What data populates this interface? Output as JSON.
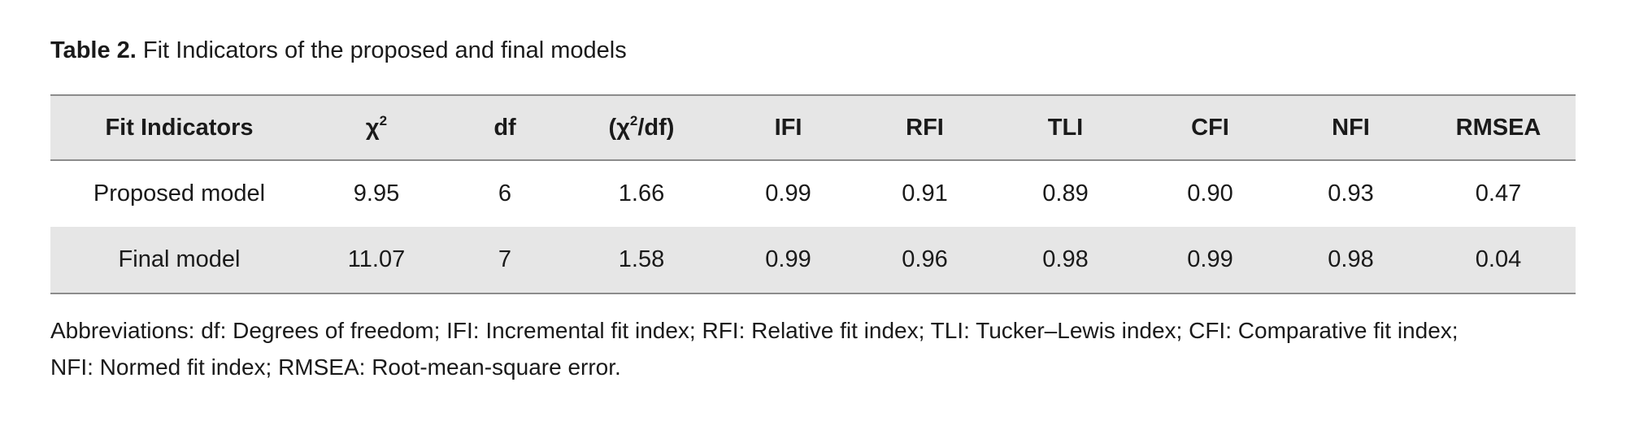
{
  "caption": {
    "label": "Table 2.",
    "text": " Fit Indicators of the proposed and final models"
  },
  "table": {
    "headers": [
      {
        "text": "Fit Indicators",
        "sup": ""
      },
      {
        "text": "χ",
        "sup": "2"
      },
      {
        "text": "df",
        "sup": ""
      },
      {
        "text": "(χ",
        "sup": "2",
        "after": "/df)"
      },
      {
        "text": "IFI",
        "sup": ""
      },
      {
        "text": "RFI",
        "sup": ""
      },
      {
        "text": "TLI",
        "sup": ""
      },
      {
        "text": "CFI",
        "sup": ""
      },
      {
        "text": "NFI",
        "sup": ""
      },
      {
        "text": "RMSEA",
        "sup": ""
      }
    ],
    "rows": [
      {
        "model": "Proposed model",
        "chi2": "9.95",
        "df": "6",
        "chi2_df": "1.66",
        "ifi": "0.99",
        "rfi": "0.91",
        "tli": "0.89",
        "cfi": "0.90",
        "nfi": "0.93",
        "rmsea": "0.47"
      },
      {
        "model": "Final model",
        "chi2": "11.07",
        "df": "7",
        "chi2_df": "1.58",
        "ifi": "0.99",
        "rfi": "0.96",
        "tli": "0.98",
        "cfi": "0.99",
        "nfi": "0.98",
        "rmsea": "0.04"
      }
    ]
  },
  "notes": {
    "line1": "Abbreviations: df: Degrees of freedom; IFI: Incremental fit index; RFI: Relative fit index; TLI: Tucker–Lewis index; CFI: Comparative fit index;",
    "line2": "NFI: Normed fit index; RMSEA: Root-mean-square error."
  }
}
